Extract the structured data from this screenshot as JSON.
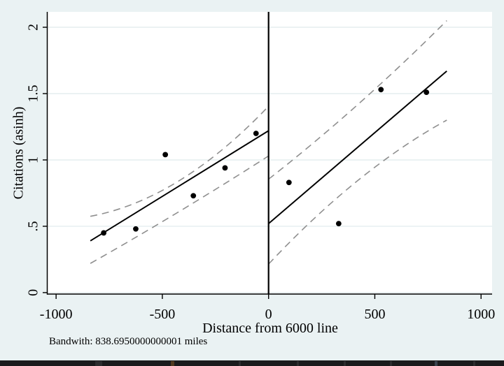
{
  "figure": {
    "note": "Bandwith: 838.6950000000001 miles",
    "background": "#eaf2f3",
    "plot_background": "#ffffff"
  },
  "chart_data": {
    "type": "scatter",
    "title": "",
    "xlabel": "Distance from 6000 line",
    "ylabel": "Citations (asinh)",
    "xlim": [
      -1040,
      1052
    ],
    "ylim": [
      -0.011,
      2.116
    ],
    "xticks": {
      "values": [
        -1000,
        -500,
        0,
        500,
        1000
      ],
      "labels": [
        "-1000",
        "-500",
        "0",
        "500",
        "1000"
      ]
    },
    "yticks": {
      "values": [
        0,
        0.5,
        1,
        1.5,
        2
      ],
      "labels": [
        "0",
        ".5",
        "1",
        "1.5",
        "2"
      ]
    },
    "grid": "horizontal-light",
    "legend_position": "none",
    "cutoff_x": 0,
    "bandwidth": "838.6950000000001",
    "points": [
      [
        -776,
        0.45
      ],
      [
        -625,
        0.48
      ],
      [
        -486,
        1.04
      ],
      [
        -354,
        0.73
      ],
      [
        -205,
        0.94
      ],
      [
        -59,
        1.2
      ],
      [
        96,
        0.83
      ],
      [
        330,
        0.52
      ],
      [
        529,
        1.53
      ],
      [
        743,
        1.51
      ]
    ],
    "fit_lines": [
      {
        "name": "left-fit",
        "x1": -838.7,
        "y1": 0.39,
        "x2": 0,
        "y2": 1.22
      },
      {
        "name": "right-fit",
        "x1": 0,
        "y1": 0.52,
        "x2": 838.7,
        "y2": 1.67
      }
    ],
    "ci_curves": [
      {
        "name": "left-upper-ci",
        "p0": [
          -838.7,
          0.575
        ],
        "c": [
          -419,
          0.7
        ],
        "p2": [
          0,
          1.405
        ]
      },
      {
        "name": "left-lower-ci",
        "p0": [
          -838.7,
          0.22
        ],
        "c": [
          -419,
          0.6
        ],
        "p2": [
          0,
          1.03
        ]
      },
      {
        "name": "right-upper-ci",
        "p0": [
          0,
          0.855
        ],
        "c": [
          419,
          1.38
        ],
        "p2": [
          838.7,
          2.05
        ]
      },
      {
        "name": "right-lower-ci",
        "p0": [
          0,
          0.215
        ],
        "c": [
          419,
          0.93
        ],
        "p2": [
          838.7,
          1.3
        ]
      }
    ],
    "colors": {
      "background": "#eaf2f3",
      "plot_bg": "#ffffff",
      "grid": "#dfeaec",
      "axis": "#000000",
      "point": "#000000",
      "fit": "#000000",
      "ci": "#8f8f8f",
      "cutoff": "#000000"
    }
  },
  "taskbar": {
    "color": "#1a1a1c",
    "seams": [
      {
        "x": 136,
        "w": 10,
        "color": "#2c2c2e"
      },
      {
        "x": 244,
        "w": 5,
        "color": "#50391f"
      },
      {
        "x": 341,
        "w": 3,
        "color": "#2c2c2e"
      },
      {
        "x": 424,
        "w": 3,
        "color": "#2c2c2e"
      },
      {
        "x": 491,
        "w": 3,
        "color": "#2c2c2e"
      },
      {
        "x": 557,
        "w": 3,
        "color": "#2c2c2e"
      },
      {
        "x": 621,
        "w": 4,
        "color": "#39424d"
      },
      {
        "x": 676,
        "w": 3,
        "color": "#2c2c2e"
      }
    ]
  }
}
